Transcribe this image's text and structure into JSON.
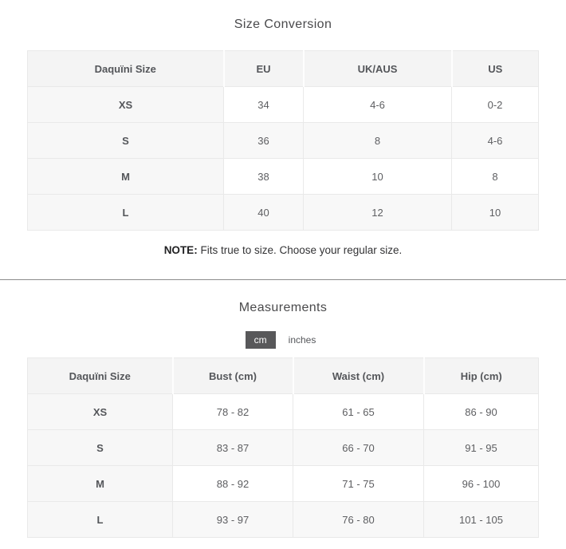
{
  "size_conversion": {
    "title": "Size Conversion",
    "headers": [
      "Daquïni Size",
      "EU",
      "UK/AUS",
      "US"
    ],
    "rows": [
      [
        "XS",
        "34",
        "4-6",
        "0-2"
      ],
      [
        "S",
        "36",
        "8",
        "4-6"
      ],
      [
        "M",
        "38",
        "10",
        "8"
      ],
      [
        "L",
        "40",
        "12",
        "10"
      ]
    ],
    "note_label": "NOTE:",
    "note_text": "Fits true to size. Choose your regular size."
  },
  "measurements": {
    "title": "Measurements",
    "units": [
      "cm",
      "inches"
    ],
    "selected_unit": "cm",
    "headers": [
      "Daquïni Size",
      "Bust (cm)",
      "Waist (cm)",
      "Hip (cm)"
    ],
    "rows": [
      [
        "XS",
        "78 - 82",
        "61 - 65",
        "86 - 90"
      ],
      [
        "S",
        "83 - 87",
        "66 - 70",
        "91 - 95"
      ],
      [
        "M",
        "88 - 92",
        "71 - 75",
        "96 - 100"
      ],
      [
        "L",
        "93 - 97",
        "76 - 80",
        "101 - 105"
      ]
    ]
  },
  "colors": {
    "selected_unit_bg": "#58585a",
    "selected_unit_text": "#ffffff",
    "table_header_bg": "#f4f4f4",
    "table_alt_row_bg": "#f8f8f8",
    "table_border": "#e9e9e9",
    "divider": "#8c8c8c"
  }
}
